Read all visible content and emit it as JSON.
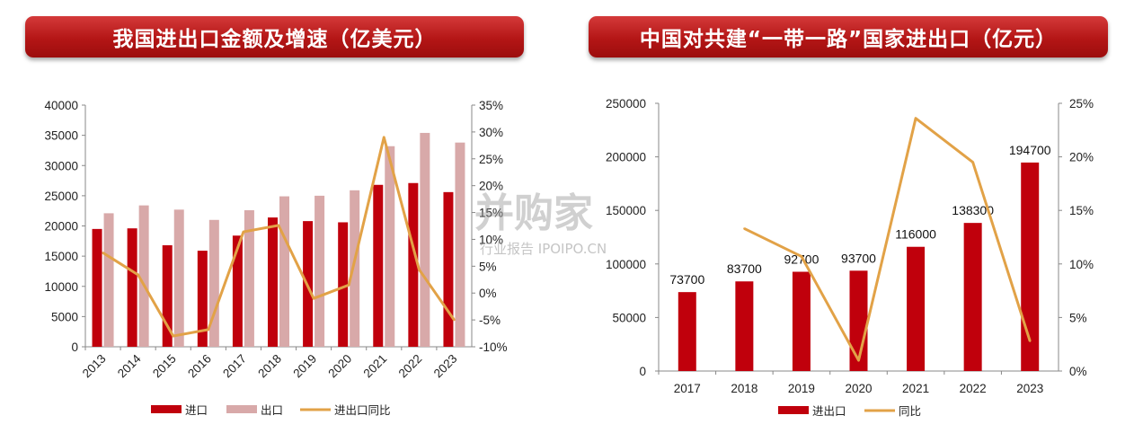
{
  "colors": {
    "import_bar": "#c0000c",
    "export_bar": "#d8a9a9",
    "growth_line": "#e2a247",
    "axis": "#888888"
  },
  "watermark": {
    "big": "并购家",
    "small": "行业报告 IPOIPO.CN"
  },
  "chart_data": [
    {
      "type": "bar",
      "title": "我国进出口金额及增速（亿美元）",
      "categories": [
        "2013",
        "2014",
        "2015",
        "2016",
        "2017",
        "2018",
        "2019",
        "2020",
        "2021",
        "2022",
        "2023"
      ],
      "series": [
        {
          "name": "进口",
          "type": "bar",
          "values": [
            19500,
            19600,
            16800,
            15900,
            18400,
            21400,
            20800,
            20600,
            26800,
            27100,
            25600
          ]
        },
        {
          "name": "出口",
          "type": "bar",
          "values": [
            22100,
            23400,
            22700,
            21000,
            22600,
            24900,
            25000,
            25900,
            33200,
            35400,
            33800
          ]
        },
        {
          "name": "进出口同比",
          "type": "line",
          "axis": "right",
          "values": [
            7.5,
            3.4,
            -8.0,
            -6.8,
            11.4,
            12.6,
            -1.0,
            1.5,
            29.0,
            4.4,
            -5.0
          ]
        }
      ],
      "ylim": [
        0,
        40000
      ],
      "yticks": [
        "0",
        "5000",
        "10000",
        "15000",
        "20000",
        "25000",
        "30000",
        "35000",
        "40000"
      ],
      "y2lim": [
        -10,
        35
      ],
      "y2ticks": [
        "-10%",
        "-5%",
        "0%",
        "5%",
        "10%",
        "15%",
        "20%",
        "25%",
        "30%",
        "35%"
      ],
      "legend": [
        "进口",
        "出口",
        "进出口同比"
      ],
      "legend_position": "bottom"
    },
    {
      "type": "bar",
      "title": "中国对共建“一带一路”国家进出口（亿元）",
      "categories": [
        "2017",
        "2018",
        "2019",
        "2020",
        "2021",
        "2022",
        "2023"
      ],
      "series": [
        {
          "name": "进出口",
          "type": "bar",
          "values": [
            73700,
            83700,
            92700,
            93700,
            116000,
            138300,
            194700
          ],
          "labels": [
            "73700",
            "83700",
            "92700",
            "93700",
            "116000",
            "138300",
            "194700"
          ]
        },
        {
          "name": "同比",
          "type": "line",
          "axis": "right",
          "values": [
            null,
            13.3,
            10.7,
            1.0,
            23.6,
            19.5,
            2.8
          ]
        }
      ],
      "ylim": [
        0,
        250000
      ],
      "yticks": [
        "0",
        "50000",
        "100000",
        "150000",
        "200000",
        "250000"
      ],
      "y2lim": [
        0,
        25
      ],
      "y2ticks": [
        "0%",
        "5%",
        "10%",
        "15%",
        "20%",
        "25%"
      ],
      "legend": [
        "进出口",
        "同比"
      ],
      "legend_position": "bottom"
    }
  ]
}
